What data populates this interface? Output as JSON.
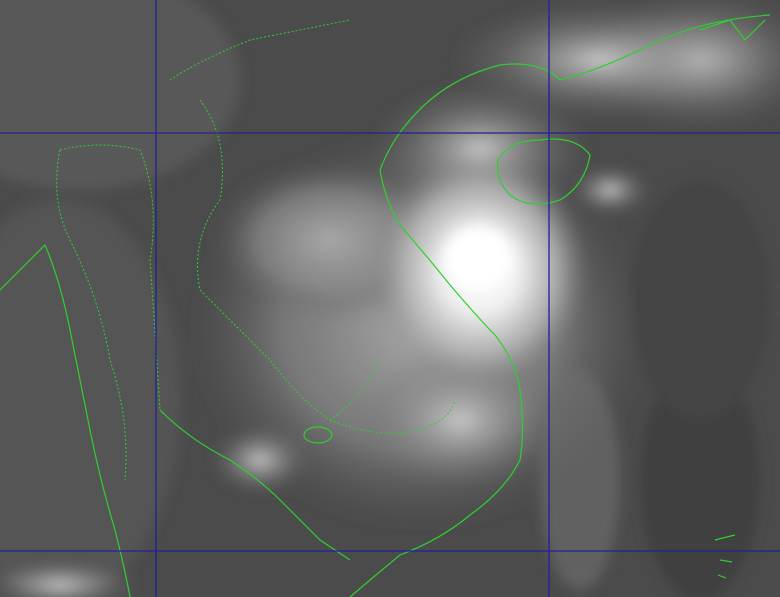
{
  "image": {
    "kind": "infrared satellite image",
    "colors": {
      "background": "#4b4b4b",
      "cloud_bright": "#ffffff",
      "coastline": "#2fcf2f",
      "grid": "#20209a"
    },
    "grid_lines": {
      "longitude_count": 2,
      "latitude_count": 2
    },
    "storm_center_visible": true
  }
}
